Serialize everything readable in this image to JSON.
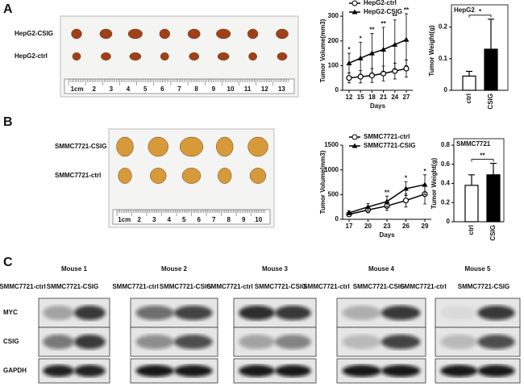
{
  "panels": {
    "A": {
      "label": "A",
      "photo_labels": [
        "HepG2-CSIG",
        "HepG2-ctrl"
      ],
      "ruler": [
        "1cm",
        "2",
        "3",
        "4",
        "5",
        "6",
        "7",
        "8",
        "9",
        "10",
        "11",
        "12",
        "13"
      ]
    },
    "B": {
      "label": "B",
      "photo_labels": [
        "SMMC7721-CSIG",
        "SMMC7721-ctrl"
      ],
      "ruler": [
        "1cm",
        "2",
        "3",
        "4",
        "5",
        "6",
        "7",
        "8",
        "9",
        "10"
      ]
    },
    "C": {
      "label": "C",
      "rows": [
        "MYC",
        "CSIG",
        "GAPDH"
      ],
      "mice": [
        {
          "name": "Mouse 1",
          "lanes": [
            "SMMC7721-ctrl",
            "SMMC7721-CSIG"
          ]
        },
        {
          "name": "Mouse 2",
          "lanes": [
            "SMMC7721-ctrl",
            "SMMC7721-CSIG"
          ]
        },
        {
          "name": "Mouse 3",
          "lanes": [
            "SMMC7721-ctrl",
            "SMMC7721-CSIG"
          ]
        },
        {
          "name": "Mouse 4",
          "lanes": [
            "SMMC7721-ctrl",
            "SMMC7721-CSIG"
          ]
        },
        {
          "name": "Mouse 5",
          "lanes": [
            "SMMC7721-ctrl",
            "SMMC7721-CSIG"
          ]
        }
      ]
    }
  },
  "chart_data": [
    {
      "type": "line",
      "y_label": "Tumor Volume(mm3)",
      "x_label": "Days",
      "categories": [
        "12",
        "15",
        "18",
        "21",
        "24",
        "27"
      ],
      "series": [
        {
          "name": "HepG2-ctrl",
          "marker": "circle",
          "color": "#000000",
          "values": [
            50,
            55,
            60,
            68,
            78,
            88
          ],
          "errors": [
            20,
            25,
            28,
            30,
            32,
            35
          ]
        },
        {
          "name": "HepG2-CSIG",
          "marker": "triangle",
          "color": "#000000",
          "values": [
            110,
            130,
            150,
            165,
            185,
            205
          ],
          "errors": [
            40,
            65,
            80,
            90,
            100,
            105
          ]
        }
      ],
      "annotations": [
        "*",
        "*",
        "**",
        "**",
        "**",
        "**"
      ],
      "ylim": [
        0,
        320
      ],
      "yticks": [
        0,
        100,
        200,
        300
      ]
    },
    {
      "type": "bar",
      "title": "HepG2",
      "y_label": "Tumor Weight(g)",
      "categories": [
        "ctrl",
        "CSIG"
      ],
      "colors": [
        "#ffffff",
        "#000000"
      ],
      "values": [
        0.045,
        0.13
      ],
      "errors": [
        0.015,
        0.095
      ],
      "significance": "*",
      "ylim": [
        0,
        0.25
      ],
      "yticks": [
        0,
        0.1,
        0.2
      ]
    },
    {
      "type": "line",
      "y_label": "Tumor Volume(mm3)",
      "x_label": "Days",
      "categories": [
        "17",
        "20",
        "23",
        "26",
        "29"
      ],
      "series": [
        {
          "name": "SMMC7721-ctrl",
          "marker": "circle",
          "color": "#000000",
          "values": [
            100,
            190,
            270,
            380,
            510
          ],
          "errors": [
            30,
            60,
            90,
            130,
            200
          ]
        },
        {
          "name": "SMMC7721-CSIG",
          "marker": "triangle",
          "color": "#000000",
          "values": [
            130,
            250,
            360,
            620,
            700
          ],
          "errors": [
            40,
            70,
            110,
            140,
            200
          ]
        }
      ],
      "annotations": [
        null,
        null,
        "**",
        "*",
        "*"
      ],
      "ylim": [
        0,
        1500
      ],
      "yticks": [
        0,
        500,
        1000,
        1500
      ]
    },
    {
      "type": "bar",
      "title": "SMMC7721",
      "y_label": "Tumor Weight(g)",
      "categories": [
        "ctrl",
        "CSIG"
      ],
      "colors": [
        "#ffffff",
        "#000000"
      ],
      "values": [
        0.38,
        0.49
      ],
      "errors": [
        0.11,
        0.12
      ],
      "significance": "**",
      "ylim": [
        0,
        0.8
      ],
      "yticks": [
        0,
        0.2,
        0.4,
        0.6,
        0.8
      ]
    }
  ]
}
